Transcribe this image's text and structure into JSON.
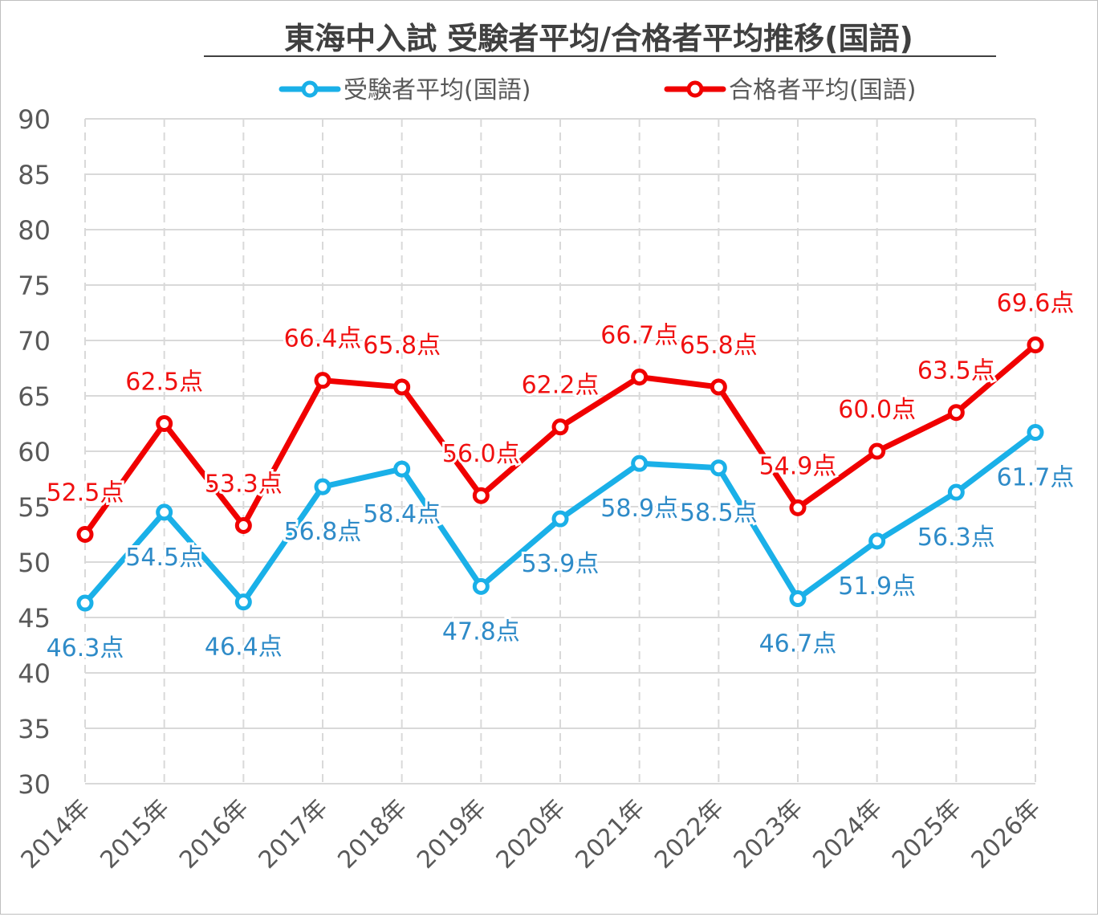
{
  "chart_data": {
    "type": "line",
    "title": "東海中入試 受験者平均/合格者平均推移(国語)",
    "categories": [
      "2014年",
      "2015年",
      "2016年",
      "2017年",
      "2018年",
      "2019年",
      "2020年",
      "2021年",
      "2022年",
      "2023年",
      "2024年",
      "2025年",
      "2026年"
    ],
    "ylim": [
      30,
      90
    ],
    "yticks": [
      30,
      35,
      40,
      45,
      50,
      55,
      60,
      65,
      70,
      75,
      80,
      85,
      90
    ],
    "grid": true,
    "legend": "top-center",
    "label_suffix": "点",
    "series": [
      {
        "name": "受験者平均(国語)",
        "color": "#1AB0E8",
        "label_color": "#2E8BC8",
        "values": [
          46.3,
          54.5,
          46.4,
          56.8,
          58.4,
          47.8,
          53.9,
          58.9,
          58.5,
          46.7,
          51.9,
          56.3,
          61.7
        ]
      },
      {
        "name": "合格者平均(国語)",
        "color": "#F00000",
        "label_color": "#F01010",
        "values": [
          52.5,
          62.5,
          53.3,
          66.4,
          65.8,
          56.0,
          62.2,
          66.7,
          65.8,
          54.9,
          60.0,
          63.5,
          69.6
        ]
      }
    ]
  }
}
